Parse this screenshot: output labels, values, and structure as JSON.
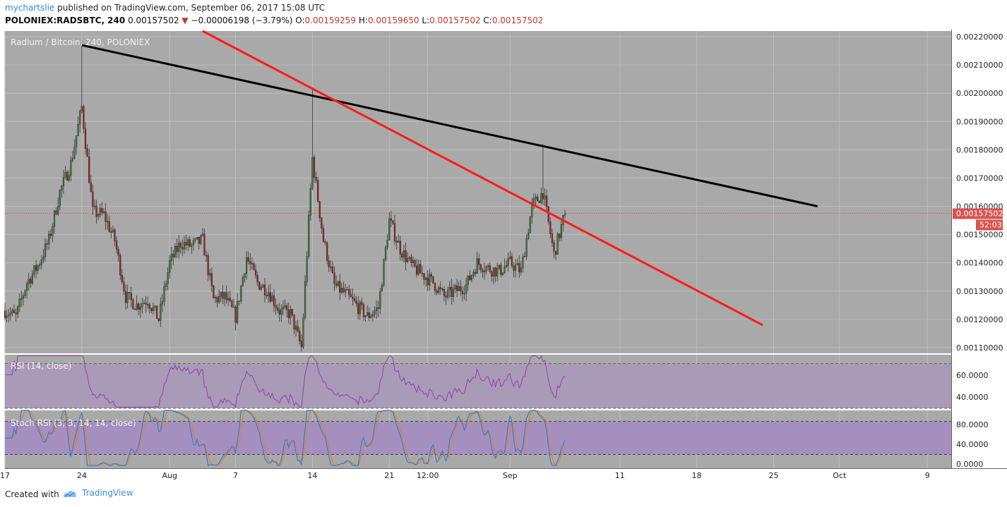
{
  "header": {
    "author": "mychartslie",
    "published_text": "published on TradingView.com, September 06, 2017 15:08 UTC",
    "symbol": "POLONIEX:RADSBTC, 240",
    "last": "0.00157502",
    "change": "−0.00006198 (−3.79%)",
    "o_label": "O:",
    "o_value": "0.00159259",
    "h_label": "H:",
    "h_value": "0.00159650",
    "l_label": "L:",
    "l_value": "0.00157502",
    "c_label": "C:",
    "c_value": "0.00157502"
  },
  "main_pane": {
    "legend": "Radium / Bitcoin, 240, POLONIEX",
    "price_badge": "0.00157502",
    "countdown_badge": "52:03"
  },
  "rsi_pane": {
    "legend": "RSI (14, close)",
    "tick_labels": [
      "60.0000",
      "40.0000"
    ]
  },
  "stoch_pane": {
    "legend": "Stoch RSI (3, 3, 14, 14, close)",
    "tick_labels": [
      "80.0000",
      "40.0000",
      "0.0000"
    ]
  },
  "time_axis": {
    "labels": [
      "17",
      "24",
      "Aug",
      "7",
      "14",
      "21",
      "12:00",
      "Sep",
      "11",
      "18",
      "25",
      "Oct",
      "9"
    ]
  },
  "footer": {
    "created_with": "Created with",
    "brand": "TradingView"
  },
  "colors": {
    "pane_bg": "#a9a9a9",
    "candle_up": "#3a7d3a",
    "candle_down": "#a0221e",
    "trendline_black": "#000000",
    "trendline_red": "#ff1a1a",
    "rsi_line": "#8e44ad",
    "stoch_k": "#2f7fd6",
    "stoch_d": "#e67e22",
    "price_line": "#d9534f"
  },
  "chart_data": {
    "type": "candlestick",
    "title": "Radium / Bitcoin, 240, POLONIEX",
    "ylim": [
      0.00108,
      0.00222
    ],
    "y_ticks": [
      "0.00220000",
      "0.00210000",
      "0.00200000",
      "0.00190000",
      "0.00180000",
      "0.00170000",
      "0.00160000",
      "0.00150000",
      "0.00140000",
      "0.00130000",
      "0.00120000",
      "0.00110000"
    ],
    "last_price": 0.00157502,
    "price_path": [
      [
        "Jul 17",
        0.00123
      ],
      [
        "Jul 18",
        0.00121
      ],
      [
        "Jul 19",
        0.00133
      ],
      [
        "Jul 20",
        0.00139
      ],
      [
        "Jul 21",
        0.00148
      ],
      [
        "Jul 22",
        0.00165
      ],
      [
        "Jul 23",
        0.00175
      ],
      [
        "Jul 24",
        0.00195
      ],
      [
        "Jul 25",
        0.00158
      ],
      [
        "Jul 26",
        0.00157
      ],
      [
        "Jul 27",
        0.00148
      ],
      [
        "Jul 28",
        0.00128
      ],
      [
        "Jul 29",
        0.00125
      ],
      [
        "Jul 30",
        0.00127
      ],
      [
        "Jul 31",
        0.0012
      ],
      [
        "Aug 1",
        0.0014
      ],
      [
        "Aug 2",
        0.00147
      ],
      [
        "Aug 3",
        0.00146
      ],
      [
        "Aug 4",
        0.00148
      ],
      [
        "Aug 5",
        0.00127
      ],
      [
        "Aug 6",
        0.00128
      ],
      [
        "Aug 7",
        0.00121
      ],
      [
        "Aug 8",
        0.00142
      ],
      [
        "Aug 9",
        0.00133
      ],
      [
        "Aug 10",
        0.0013
      ],
      [
        "Aug 11",
        0.00123
      ],
      [
        "Aug 12",
        0.00122
      ],
      [
        "Aug 13",
        0.0011
      ],
      [
        "Aug 14",
        0.00177
      ],
      [
        "Aug 15",
        0.00148
      ],
      [
        "Aug 16",
        0.00132
      ],
      [
        "Aug 17",
        0.00129
      ],
      [
        "Aug 18",
        0.00125
      ],
      [
        "Aug 19",
        0.00121
      ],
      [
        "Aug 20",
        0.00124
      ],
      [
        "Aug 21",
        0.00155
      ],
      [
        "Aug 22",
        0.00145
      ],
      [
        "Aug 23",
        0.00139
      ],
      [
        "Aug 24",
        0.00136
      ],
      [
        "Aug 25",
        0.00133
      ],
      [
        "Aug 26",
        0.00128
      ],
      [
        "Aug 27",
        0.0013
      ],
      [
        "Aug 28",
        0.00132
      ],
      [
        "Aug 29",
        0.0014
      ],
      [
        "Aug 30",
        0.00138
      ],
      [
        "Aug 31",
        0.00137
      ],
      [
        "Sep 1",
        0.0014
      ],
      [
        "Sep 2",
        0.00137
      ],
      [
        "Sep 3",
        0.0016
      ],
      [
        "Sep 4",
        0.00165
      ],
      [
        "Sep 5",
        0.00143
      ],
      [
        "Sep 6",
        0.00157502
      ]
    ],
    "trendlines": [
      {
        "name": "black",
        "from": [
          "Jul 24",
          0.00217
        ],
        "to": [
          "Sep 29",
          0.0016
        ]
      },
      {
        "name": "red",
        "from": [
          "Aug 4",
          0.00222
        ],
        "to": [
          "Sep 24",
          0.00118
        ]
      }
    ],
    "rsi": {
      "ylim": [
        30,
        78
      ],
      "levels": [
        70,
        30
      ],
      "last": 55
    },
    "stoch_rsi": {
      "ylim": [
        -5,
        100
      ],
      "levels": [
        80,
        20
      ],
      "last_k": 62,
      "last_d": 58
    }
  }
}
